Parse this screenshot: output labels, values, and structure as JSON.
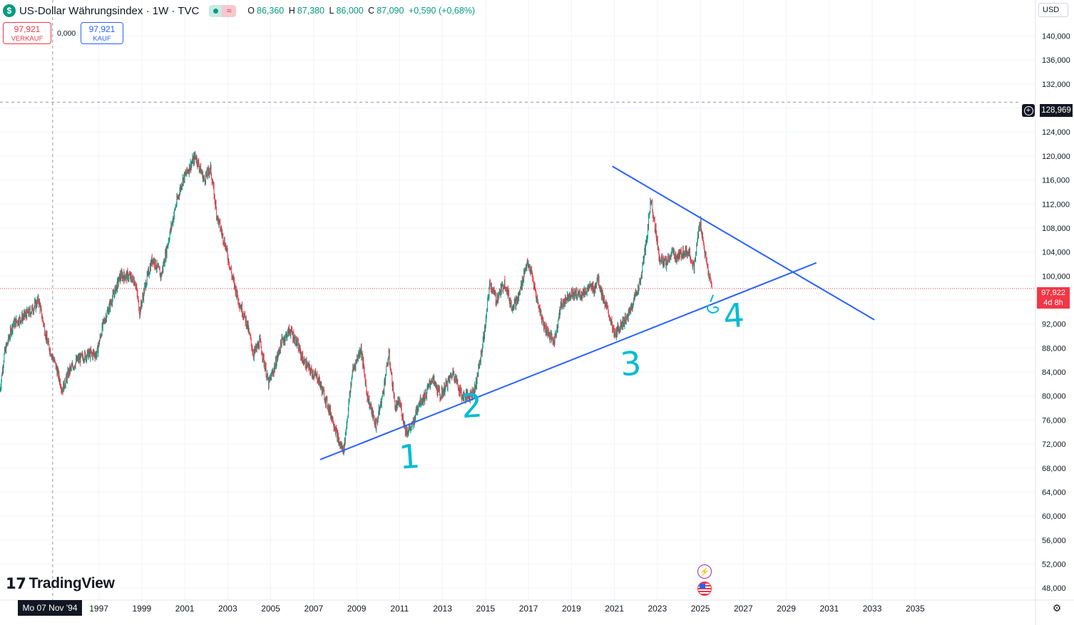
{
  "header": {
    "symbol_icon": "$",
    "title": "US-Dollar Währungsindex · 1W · TVC",
    "market_status": "market-open-icon",
    "indicator_glyph": "≈",
    "ohlc": {
      "o_label": "O",
      "o": "86,360",
      "h_label": "H",
      "h": "87,380",
      "l_label": "L",
      "l": "86,000",
      "c_label": "C",
      "c": "87,090",
      "change": "+0,590 (+0,68%)"
    }
  },
  "trade": {
    "sell_price": "97,921",
    "sell_label": "VERKAUF",
    "spread": "0,000",
    "buy_price": "97,921",
    "buy_label": "KAUF"
  },
  "currency": "USD",
  "price_tag": {
    "price": "97,922",
    "countdown": "4d 8h"
  },
  "crosshair": {
    "price": "128,969",
    "date": "Mo 07 Nov '94",
    "year": 1994.85,
    "value": 128.969
  },
  "logo_text": "TradingView",
  "colors": {
    "up": "#089981",
    "down": "#f23645",
    "trendline": "#2962ff",
    "annotation": "#00bcd4",
    "current_price": "#f23645"
  },
  "chart_data": {
    "type": "candlestick",
    "symbol": "DXY",
    "interval": "1W",
    "ylim": [
      46,
      146
    ],
    "xlim": [
      1992.4,
      2040.6
    ],
    "y_ticks": [
      "48,000",
      "52,000",
      "56,000",
      "60,000",
      "64,000",
      "68,000",
      "72,000",
      "76,000",
      "80,000",
      "84,000",
      "88,000",
      "92,000",
      "96,000",
      "100,000",
      "104,000",
      "108,000",
      "112,000",
      "116,000",
      "120,000",
      "124,000",
      "128,000",
      "132,000",
      "136,000",
      "140,000"
    ],
    "x_ticks": [
      "1997",
      "1999",
      "2001",
      "2003",
      "2005",
      "2007",
      "2009",
      "2011",
      "2013",
      "2015",
      "2017",
      "2019",
      "2021",
      "2023",
      "2025",
      "2027",
      "2029",
      "2031",
      "2033",
      "2035"
    ],
    "series": [
      {
        "values_note": "approximate weekly closes sampled from the chart (year, value)",
        "points": [
          [
            1992.4,
            81
          ],
          [
            1992.6,
            87
          ],
          [
            1993.0,
            92
          ],
          [
            1993.4,
            93
          ],
          [
            1993.8,
            94
          ],
          [
            1994.2,
            96
          ],
          [
            1994.6,
            89
          ],
          [
            1995.0,
            85
          ],
          [
            1995.3,
            81
          ],
          [
            1995.6,
            84
          ],
          [
            1996.0,
            86
          ],
          [
            1996.5,
            87
          ],
          [
            1996.9,
            87
          ],
          [
            1997.2,
            92
          ],
          [
            1997.6,
            96
          ],
          [
            1998.0,
            100
          ],
          [
            1998.4,
            100
          ],
          [
            1998.7,
            99
          ],
          [
            1998.9,
            94
          ],
          [
            1999.2,
            99
          ],
          [
            1999.5,
            103
          ],
          [
            1999.9,
            100
          ],
          [
            2000.3,
            107
          ],
          [
            2000.6,
            112
          ],
          [
            2000.9,
            116
          ],
          [
            2001.2,
            118
          ],
          [
            2001.5,
            120
          ],
          [
            2001.9,
            116
          ],
          [
            2002.2,
            118
          ],
          [
            2002.5,
            110
          ],
          [
            2002.9,
            105
          ],
          [
            2003.2,
            100
          ],
          [
            2003.5,
            96
          ],
          [
            2003.9,
            92
          ],
          [
            2004.2,
            87
          ],
          [
            2004.5,
            89
          ],
          [
            2004.9,
            82
          ],
          [
            2005.2,
            85
          ],
          [
            2005.5,
            89
          ],
          [
            2005.9,
            91
          ],
          [
            2006.2,
            89
          ],
          [
            2006.5,
            86
          ],
          [
            2006.9,
            84
          ],
          [
            2007.2,
            83
          ],
          [
            2007.5,
            80
          ],
          [
            2007.9,
            76
          ],
          [
            2008.2,
            72
          ],
          [
            2008.4,
            71
          ],
          [
            2008.8,
            84
          ],
          [
            2009.0,
            86
          ],
          [
            2009.2,
            88
          ],
          [
            2009.5,
            80
          ],
          [
            2009.9,
            75
          ],
          [
            2010.2,
            80
          ],
          [
            2010.5,
            87
          ],
          [
            2010.8,
            78
          ],
          [
            2011.0,
            79
          ],
          [
            2011.3,
            74
          ],
          [
            2011.6,
            75
          ],
          [
            2011.9,
            79
          ],
          [
            2012.2,
            80
          ],
          [
            2012.5,
            83
          ],
          [
            2012.9,
            80
          ],
          [
            2013.2,
            82
          ],
          [
            2013.5,
            84
          ],
          [
            2013.9,
            80
          ],
          [
            2014.2,
            80
          ],
          [
            2014.5,
            81
          ],
          [
            2014.8,
            87
          ],
          [
            2015.0,
            92
          ],
          [
            2015.2,
            99
          ],
          [
            2015.5,
            96
          ],
          [
            2015.9,
            99
          ],
          [
            2016.2,
            95
          ],
          [
            2016.5,
            96
          ],
          [
            2016.9,
            102
          ],
          [
            2017.1,
            101
          ],
          [
            2017.4,
            96
          ],
          [
            2017.7,
            92
          ],
          [
            2018.0,
            90
          ],
          [
            2018.2,
            89
          ],
          [
            2018.5,
            95
          ],
          [
            2018.9,
            97
          ],
          [
            2019.2,
            97
          ],
          [
            2019.5,
            97
          ],
          [
            2019.8,
            98
          ],
          [
            2020.1,
            98
          ],
          [
            2020.2,
            100
          ],
          [
            2020.5,
            96
          ],
          [
            2020.8,
            93
          ],
          [
            2021.0,
            90
          ],
          [
            2021.3,
            92
          ],
          [
            2021.6,
            93
          ],
          [
            2021.9,
            96
          ],
          [
            2022.2,
            99
          ],
          [
            2022.5,
            106
          ],
          [
            2022.7,
            113
          ],
          [
            2022.9,
            108
          ],
          [
            2023.1,
            103
          ],
          [
            2023.4,
            102
          ],
          [
            2023.7,
            104
          ],
          [
            2023.9,
            103
          ],
          [
            2024.2,
            104
          ],
          [
            2024.5,
            104
          ],
          [
            2024.7,
            101
          ],
          [
            2024.9,
            107
          ],
          [
            2025.0,
            109
          ],
          [
            2025.2,
            104
          ],
          [
            2025.4,
            100
          ],
          [
            2025.55,
            98
          ]
        ]
      }
    ],
    "current_price": 97.922,
    "trendlines": [
      {
        "name": "support",
        "from": [
          2007.3,
          69.4
        ],
        "to": [
          2030.4,
          102.2
        ]
      },
      {
        "name": "resistance",
        "from": [
          2020.9,
          118.3
        ],
        "to": [
          2033.1,
          92.7
        ]
      }
    ],
    "annotations": [
      {
        "text": "1",
        "x": 2011.5,
        "y": 68.0
      },
      {
        "text": "2",
        "x": 2014.4,
        "y": 76.5
      },
      {
        "text": "3",
        "x": 2021.8,
        "y": 83.5
      },
      {
        "text": "4",
        "x": 2026.6,
        "y": 91.5
      }
    ]
  }
}
